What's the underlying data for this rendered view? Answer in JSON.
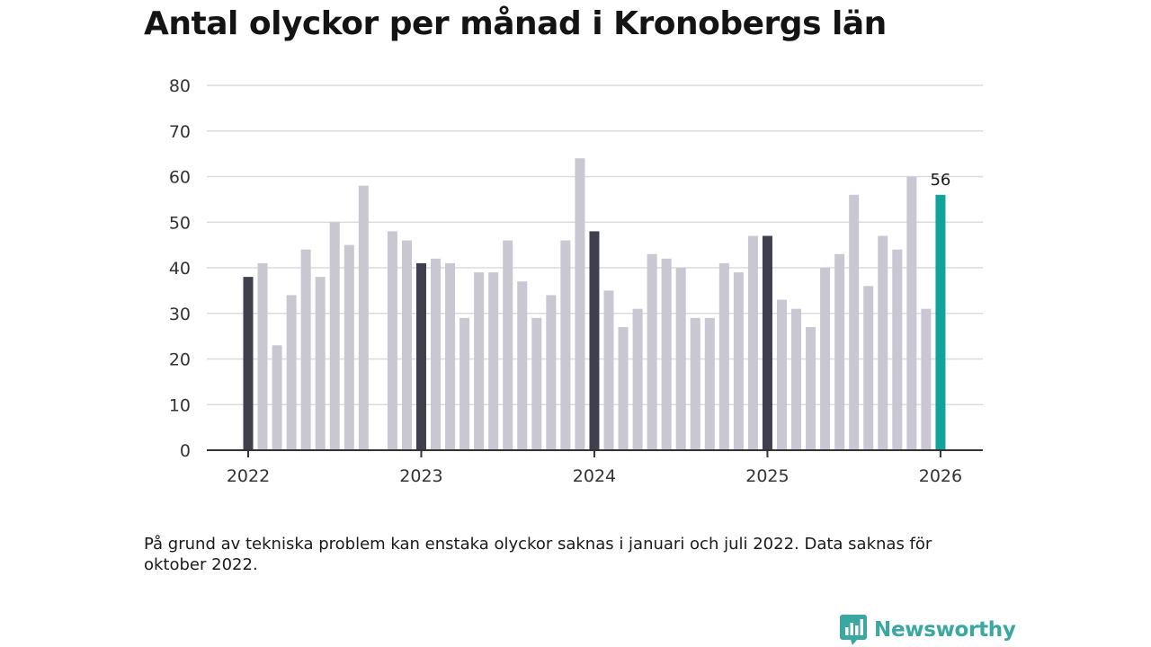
{
  "title": "Antal olyckor per månad i Kronobergs län",
  "note": "På grund av tekniska problem kan enstaka olyckor saknas i januari och juli 2022. Data saknas för oktober 2022.",
  "logo": {
    "text": "Newsworthy",
    "icon": "newsworthy-chart-icon"
  },
  "colors": {
    "regular": "#c8c7d2",
    "january": "#3f3f4d",
    "latest": "#12a39a",
    "grid": "#dcdcdc",
    "axis": "#333333",
    "text": "#333333"
  },
  "chart_data": {
    "type": "bar",
    "title": "Antal olyckor per månad i Kronobergs län",
    "xlabel": "",
    "ylabel": "",
    "ylim": [
      0,
      80
    ],
    "yticks": [
      "0",
      "10",
      "20",
      "30",
      "40",
      "50",
      "60",
      "70",
      "80"
    ],
    "xticks": [
      "2022",
      "2023",
      "2024",
      "2025",
      "2026"
    ],
    "grid": true,
    "months": [
      {
        "date": "2022-01",
        "value": 38,
        "kind": "january"
      },
      {
        "date": "2022-02",
        "value": 41,
        "kind": "regular"
      },
      {
        "date": "2022-03",
        "value": 23,
        "kind": "regular"
      },
      {
        "date": "2022-04",
        "value": 34,
        "kind": "regular"
      },
      {
        "date": "2022-05",
        "value": 44,
        "kind": "regular"
      },
      {
        "date": "2022-06",
        "value": 38,
        "kind": "regular"
      },
      {
        "date": "2022-07",
        "value": 50,
        "kind": "regular"
      },
      {
        "date": "2022-08",
        "value": 45,
        "kind": "regular"
      },
      {
        "date": "2022-09",
        "value": 58,
        "kind": "regular"
      },
      {
        "date": "2022-10",
        "value": null,
        "kind": "missing"
      },
      {
        "date": "2022-11",
        "value": 48,
        "kind": "regular"
      },
      {
        "date": "2022-12",
        "value": 46,
        "kind": "regular"
      },
      {
        "date": "2023-01",
        "value": 41,
        "kind": "january"
      },
      {
        "date": "2023-02",
        "value": 42,
        "kind": "regular"
      },
      {
        "date": "2023-03",
        "value": 41,
        "kind": "regular"
      },
      {
        "date": "2023-04",
        "value": 29,
        "kind": "regular"
      },
      {
        "date": "2023-05",
        "value": 39,
        "kind": "regular"
      },
      {
        "date": "2023-06",
        "value": 39,
        "kind": "regular"
      },
      {
        "date": "2023-07",
        "value": 46,
        "kind": "regular"
      },
      {
        "date": "2023-08",
        "value": 37,
        "kind": "regular"
      },
      {
        "date": "2023-09",
        "value": 29,
        "kind": "regular"
      },
      {
        "date": "2023-10",
        "value": 34,
        "kind": "regular"
      },
      {
        "date": "2023-11",
        "value": 46,
        "kind": "regular"
      },
      {
        "date": "2023-12",
        "value": 64,
        "kind": "regular"
      },
      {
        "date": "2024-01",
        "value": 48,
        "kind": "january"
      },
      {
        "date": "2024-02",
        "value": 35,
        "kind": "regular"
      },
      {
        "date": "2024-03",
        "value": 27,
        "kind": "regular"
      },
      {
        "date": "2024-04",
        "value": 31,
        "kind": "regular"
      },
      {
        "date": "2024-05",
        "value": 43,
        "kind": "regular"
      },
      {
        "date": "2024-06",
        "value": 42,
        "kind": "regular"
      },
      {
        "date": "2024-07",
        "value": 40,
        "kind": "regular"
      },
      {
        "date": "2024-08",
        "value": 29,
        "kind": "regular"
      },
      {
        "date": "2024-09",
        "value": 29,
        "kind": "regular"
      },
      {
        "date": "2024-10",
        "value": 41,
        "kind": "regular"
      },
      {
        "date": "2024-11",
        "value": 39,
        "kind": "regular"
      },
      {
        "date": "2024-12",
        "value": 47,
        "kind": "regular"
      },
      {
        "date": "2025-01",
        "value": 47,
        "kind": "january"
      },
      {
        "date": "2025-02",
        "value": 33,
        "kind": "regular"
      },
      {
        "date": "2025-03",
        "value": 31,
        "kind": "regular"
      },
      {
        "date": "2025-04",
        "value": 27,
        "kind": "regular"
      },
      {
        "date": "2025-05",
        "value": 40,
        "kind": "regular"
      },
      {
        "date": "2025-06",
        "value": 43,
        "kind": "regular"
      },
      {
        "date": "2025-07",
        "value": 56,
        "kind": "regular"
      },
      {
        "date": "2025-08",
        "value": 36,
        "kind": "regular"
      },
      {
        "date": "2025-09",
        "value": 47,
        "kind": "regular"
      },
      {
        "date": "2025-10",
        "value": 44,
        "kind": "regular"
      },
      {
        "date": "2025-11",
        "value": 60,
        "kind": "regular"
      },
      {
        "date": "2025-12",
        "value": 31,
        "kind": "regular"
      },
      {
        "date": "2026-01",
        "value": 56,
        "kind": "latest"
      }
    ],
    "annotations": [
      {
        "date": "2026-01",
        "text": "56"
      }
    ]
  }
}
